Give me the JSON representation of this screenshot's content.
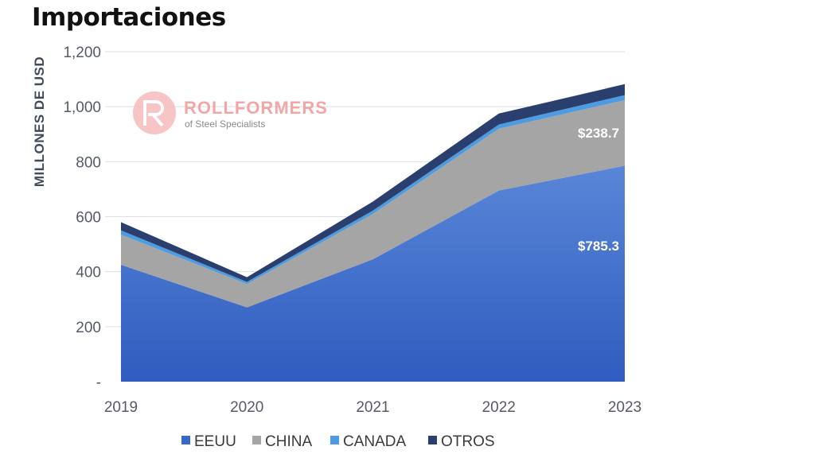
{
  "page": {
    "title": "Importaciones"
  },
  "watermark": {
    "brand": "ROLLFORMERS",
    "tagline": "of Steel Specialists",
    "color": "#f3a6a6"
  },
  "chart_data": {
    "type": "area",
    "stacked": true,
    "x": [
      "2019",
      "2020",
      "2021",
      "2022",
      "2023"
    ],
    "ylabel": "MILLONES DE USD",
    "ylim": [
      0,
      1200
    ],
    "yticks": [
      "-",
      "200",
      "400",
      "600",
      "800",
      "1,000",
      "1,200"
    ],
    "ytick_values": [
      0,
      200,
      400,
      600,
      800,
      1000,
      1200
    ],
    "grid": true,
    "legend_position": "bottom",
    "series": [
      {
        "name": "EEUU",
        "color": "#3a68c8",
        "values": [
          425,
          270,
          445,
          695,
          785.3
        ]
      },
      {
        "name": "CHINA",
        "color": "#a5a5a5",
        "values": [
          110,
          85,
          165,
          225,
          238.7
        ]
      },
      {
        "name": "CANADA",
        "color": "#4d9be0",
        "values": [
          15,
          8,
          12,
          15,
          18
        ]
      },
      {
        "name": "OTROS",
        "color": "#2b3f6e",
        "values": [
          30,
          17,
          33,
          40,
          40
        ]
      }
    ],
    "data_labels": [
      {
        "text": "$785.3",
        "series": "EEUU",
        "x": "2023"
      },
      {
        "text": "$238.7",
        "series": "CHINA",
        "x": "2023"
      }
    ]
  }
}
